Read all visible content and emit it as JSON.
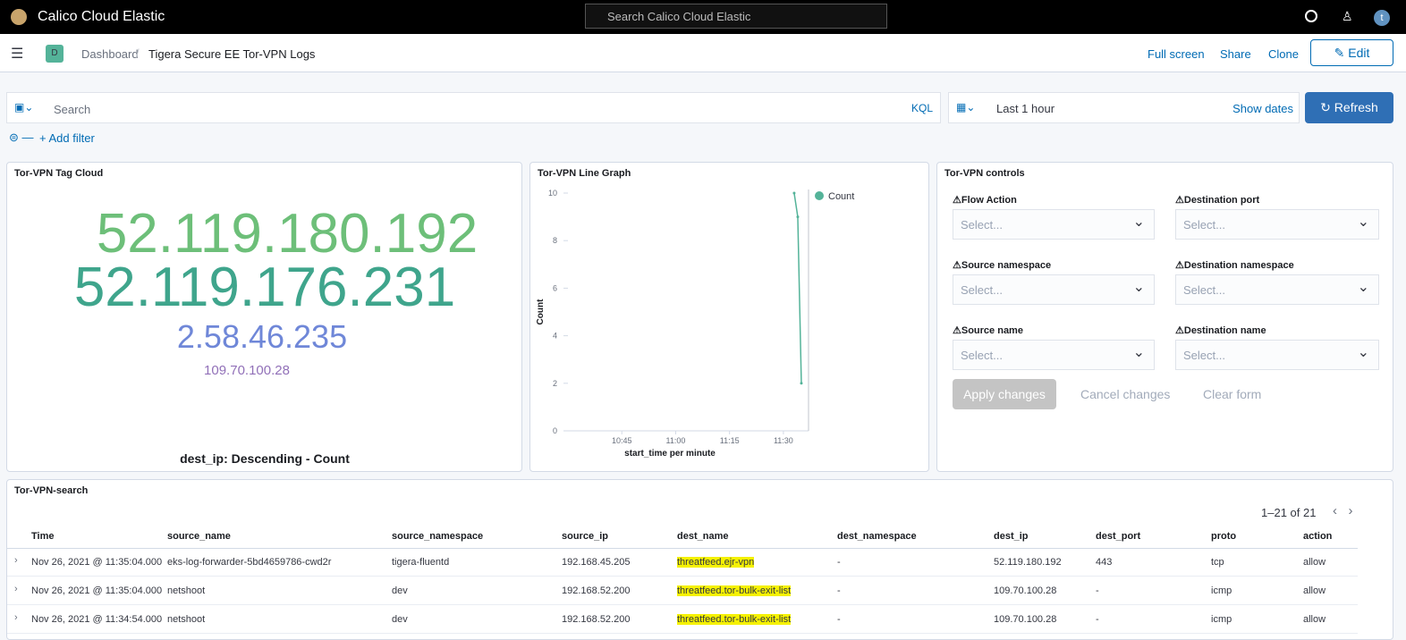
{
  "header": {
    "app_title": "Calico Cloud Elastic",
    "search_placeholder": "Search Calico Cloud Elastic",
    "avatar": "t"
  },
  "breadcrumb": {
    "badge": "D",
    "parent": "Dashboard",
    "current": "Tigera Secure EE Tor-VPN Logs"
  },
  "actions": {
    "full_screen": "Full screen",
    "share": "Share",
    "clone": "Clone",
    "edit": "Edit"
  },
  "query_bar": {
    "search_placeholder": "Search",
    "language": "KQL",
    "time_range": "Last 1 hour",
    "show_dates": "Show dates",
    "refresh": "Refresh",
    "add_filter": "+ Add filter"
  },
  "tag_cloud": {
    "title": "Tor-VPN Tag Cloud",
    "tags": [
      "52.119.180.192",
      "52.119.176.231",
      "2.58.46.235",
      "109.70.100.28"
    ],
    "caption": "dest_ip: Descending - Count"
  },
  "line_graph": {
    "type": "line",
    "title": "Tor-VPN Line Graph",
    "y_label": "Count",
    "x_label": "start_time per minute",
    "x": [
      "11:33",
      "11:34",
      "11:35"
    ],
    "series": [
      {
        "name": "Count",
        "color": "#54b399",
        "values": [
          10,
          9,
          2
        ]
      }
    ],
    "xlim": [
      "10:30",
      "11:37"
    ],
    "xticks": [
      "10:45",
      "11:00",
      "11:15",
      "11:30"
    ],
    "ylim": [
      0,
      10
    ],
    "yticks": [
      0,
      2,
      4,
      6,
      8,
      10
    ]
  },
  "controls": {
    "title": "Tor-VPN controls",
    "fields": [
      {
        "label": "Flow Action",
        "placeholder": "Select..."
      },
      {
        "label": "Destination port",
        "placeholder": "Select..."
      },
      {
        "label": "Source namespace",
        "placeholder": "Select..."
      },
      {
        "label": "Destination namespace",
        "placeholder": "Select..."
      },
      {
        "label": "Source name",
        "placeholder": "Select..."
      },
      {
        "label": "Destination name",
        "placeholder": "Select..."
      }
    ],
    "apply": "Apply changes",
    "cancel": "Cancel changes",
    "clear": "Clear form"
  },
  "table": {
    "title": "Tor-VPN-search",
    "pagination": "1–21 of 21",
    "columns": [
      "Time",
      "source_name",
      "source_namespace",
      "source_ip",
      "dest_name",
      "dest_namespace",
      "dest_ip",
      "dest_port",
      "proto",
      "action"
    ],
    "rows": [
      [
        "Nov 26, 2021 @ 11:35:04.000",
        "eks-log-forwarder-5bd4659786-cwd2r",
        "tigera-fluentd",
        "192.168.45.205",
        "threatfeed.ejr-vpn",
        "-",
        "52.119.180.192",
        "443",
        "tcp",
        "allow"
      ],
      [
        "Nov 26, 2021 @ 11:35:04.000",
        "netshoot",
        "dev",
        "192.168.52.200",
        "threatfeed.tor-bulk-exit-list",
        "-",
        "109.70.100.28",
        "-",
        "icmp",
        "allow"
      ],
      [
        "Nov 26, 2021 @ 11:34:54.000",
        "netshoot",
        "dev",
        "192.168.52.200",
        "threatfeed.tor-bulk-exit-list",
        "-",
        "109.70.100.28",
        "-",
        "icmp",
        "allow"
      ]
    ]
  }
}
